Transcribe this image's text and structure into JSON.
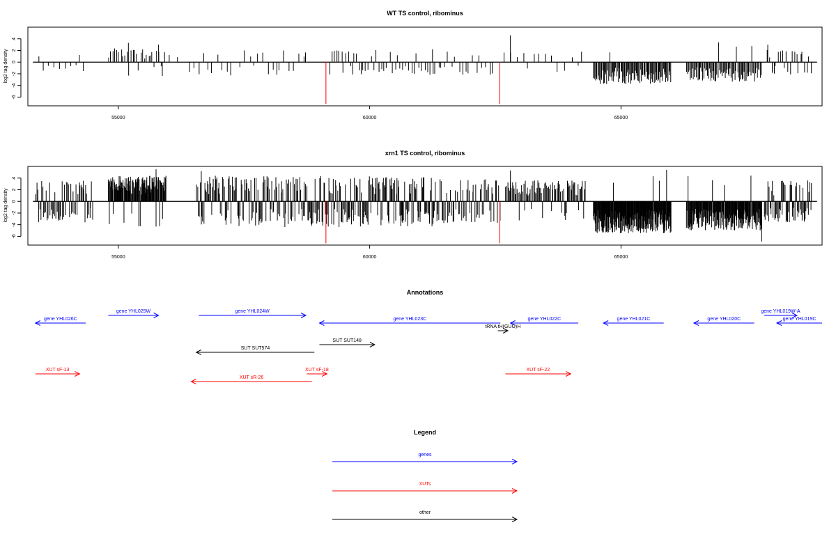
{
  "chart_data": [
    {
      "type": "bar",
      "title": "WT TS control, ribominus",
      "ylabel": "log2 tag density",
      "xlim": [
        53200,
        69000
      ],
      "ylim": [
        -7.5,
        6
      ],
      "xticks": [
        55000,
        60000,
        65000
      ],
      "xtick_labels": [
        "55000",
        "60000",
        "65000"
      ],
      "yticks": [
        -6,
        -4,
        -2,
        0,
        2,
        4
      ],
      "ytick_labels": [
        "-6",
        "-4",
        "-2",
        "0",
        "2",
        "4"
      ],
      "baseline": [
        53300,
        68900
      ],
      "highlights": [
        {
          "x": 59130,
          "value": -7.2,
          "color": "#ff0000"
        },
        {
          "x": 62590,
          "value": -7.2,
          "color": "#ff0000"
        }
      ],
      "profile": [
        {
          "start": 53400,
          "end": 54400,
          "n": 10,
          "amp": 1.6,
          "pos": 0.35,
          "seed": 11
        },
        {
          "start": 54800,
          "end": 55900,
          "n": 28,
          "amp": 2.4,
          "pos": 0.85,
          "seed": 12
        },
        {
          "start": 55900,
          "end": 56200,
          "n": 3,
          "amp": 2.0,
          "pos": 0.7,
          "seed": 13
        },
        {
          "start": 56400,
          "end": 57300,
          "n": 10,
          "amp": 2.6,
          "pos": 0.15,
          "seed": 14
        },
        {
          "start": 57400,
          "end": 58800,
          "n": 16,
          "amp": 2.2,
          "pos": 0.45,
          "seed": 15
        },
        {
          "start": 59200,
          "end": 59900,
          "n": 16,
          "amp": 2.4,
          "pos": 0.35,
          "seed": 16
        },
        {
          "start": 59900,
          "end": 61400,
          "n": 28,
          "amp": 2.2,
          "pos": 0.25,
          "seed": 17
        },
        {
          "start": 61400,
          "end": 62500,
          "n": 16,
          "amp": 2.2,
          "pos": 0.2,
          "seed": 18
        },
        {
          "start": 62650,
          "end": 64300,
          "n": 14,
          "amp": 1.8,
          "pos": 0.75,
          "seed": 19
        },
        {
          "start": 64450,
          "end": 66000,
          "n": 95,
          "amp": 3.8,
          "pos": 0.03,
          "seed": 20
        },
        {
          "start": 66300,
          "end": 67800,
          "n": 80,
          "amp": 3.4,
          "pos": 0.04,
          "seed": 21
        },
        {
          "start": 67900,
          "end": 68800,
          "n": 22,
          "amp": 2.2,
          "pos": 0.35,
          "seed": 22
        }
      ],
      "spikes": [
        {
          "x": 55200,
          "value": 3.3
        },
        {
          "x": 55800,
          "value": 3.0
        },
        {
          "x": 62800,
          "value": 4.6
        },
        {
          "x": 67920,
          "value": 3.0
        },
        {
          "x": 61250,
          "value": 2.2
        }
      ]
    },
    {
      "type": "bar",
      "title": "xrn1 TS control, ribominus",
      "ylabel": "log2 tag density",
      "xlim": [
        53200,
        69000
      ],
      "ylim": [
        -7.5,
        6
      ],
      "xticks": [
        55000,
        60000,
        65000
      ],
      "xtick_labels": [
        "55000",
        "60000",
        "65000"
      ],
      "yticks": [
        -6,
        -4,
        -2,
        0,
        2,
        4
      ],
      "ytick_labels": [
        "-6",
        "-4",
        "-2",
        "0",
        "2",
        "4"
      ],
      "baseline": [
        53300,
        68900
      ],
      "highlights": [
        {
          "x": 59130,
          "value": -7.2,
          "color": "#ff0000"
        },
        {
          "x": 62590,
          "value": -7.2,
          "color": "#ff0000"
        }
      ],
      "profile": [
        {
          "start": 53350,
          "end": 54500,
          "n": 60,
          "amp": 3.6,
          "pos": 0.35,
          "seed": 31
        },
        {
          "start": 54800,
          "end": 55950,
          "n": 120,
          "amp": 4.4,
          "pos": 0.92,
          "seed": 32
        },
        {
          "start": 56550,
          "end": 59200,
          "n": 150,
          "amp": 4.4,
          "pos": 0.5,
          "seed": 33
        },
        {
          "start": 59200,
          "end": 61300,
          "n": 130,
          "amp": 4.4,
          "pos": 0.5,
          "seed": 34
        },
        {
          "start": 61300,
          "end": 62600,
          "n": 60,
          "amp": 3.8,
          "pos": 0.5,
          "seed": 35
        },
        {
          "start": 62700,
          "end": 64300,
          "n": 85,
          "amp": 3.6,
          "pos": 0.85,
          "seed": 36
        },
        {
          "start": 64450,
          "end": 66000,
          "n": 200,
          "amp": 5.5,
          "pos": 0.02,
          "seed": 37
        },
        {
          "start": 66300,
          "end": 67800,
          "n": 160,
          "amp": 5.0,
          "pos": 0.04,
          "seed": 38
        },
        {
          "start": 67850,
          "end": 68800,
          "n": 60,
          "amp": 3.6,
          "pos": 0.3,
          "seed": 39
        }
      ],
      "spikes": [
        {
          "x": 55750,
          "value": 5.5
        },
        {
          "x": 62800,
          "value": 5.3
        },
        {
          "x": 67800,
          "value": -6.9
        },
        {
          "x": 56650,
          "value": 5.2
        }
      ]
    }
  ],
  "annotations": {
    "title": "Annotations",
    "features": [
      {
        "label": "gene YHL026C",
        "start": 53350,
        "end": 54350,
        "strand": "-",
        "row": 1,
        "color": "#0000ff"
      },
      {
        "label": "gene YHL025W",
        "start": 54800,
        "end": 55800,
        "strand": "+",
        "row": 0,
        "color": "#0000ff"
      },
      {
        "label": "gene YHL024W",
        "start": 56600,
        "end": 58730,
        "strand": "+",
        "row": 0,
        "color": "#0000ff"
      },
      {
        "label": "gene YHL023C",
        "start": 59000,
        "end": 62600,
        "strand": "-",
        "row": 1,
        "color": "#0000ff"
      },
      {
        "label": "gene YHL022C",
        "start": 62800,
        "end": 64150,
        "strand": "-",
        "row": 1,
        "color": "#0000ff"
      },
      {
        "label": "gene YHL021C",
        "start": 64650,
        "end": 65850,
        "strand": "-",
        "row": 1,
        "color": "#0000ff"
      },
      {
        "label": "gene YHL020C",
        "start": 66450,
        "end": 67650,
        "strand": "-",
        "row": 1,
        "color": "#0000ff"
      },
      {
        "label": "gene YHL019W-A",
        "start": 67850,
        "end": 68500,
        "strand": "+",
        "row": 0,
        "color": "#0000ff"
      },
      {
        "label": "gene YHL019C",
        "start": 68100,
        "end": 69000,
        "strand": "-",
        "row": 1,
        "color": "#0000ff"
      },
      {
        "label": "tRNA tH(GUG)H",
        "start": 62550,
        "end": 62750,
        "strand": "+",
        "row": 2,
        "color": "#000000"
      },
      {
        "label": "SUT SUT148",
        "start": 59000,
        "end": 60100,
        "strand": "+",
        "row": 3,
        "color": "#000000"
      },
      {
        "label": "SUT SUT574",
        "start": 56550,
        "end": 58900,
        "strand": "-",
        "row": 4,
        "color": "#000000"
      },
      {
        "label": "XUT sF-13",
        "start": 53350,
        "end": 54230,
        "strand": "+",
        "row": 5,
        "color": "#ff0000"
      },
      {
        "label": "XUT sF-18",
        "start": 58750,
        "end": 59150,
        "strand": "+",
        "row": 5,
        "color": "#ff0000"
      },
      {
        "label": "XUT sF-22",
        "start": 62700,
        "end": 64000,
        "strand": "+",
        "row": 5,
        "color": "#ff0000"
      },
      {
        "label": "XUT sR-26",
        "start": 56450,
        "end": 58850,
        "strand": "-",
        "row": 6,
        "color": "#ff0000"
      }
    ]
  },
  "legend": {
    "title": "Legend",
    "items": [
      {
        "label": "genes",
        "color": "#0000ff"
      },
      {
        "label": "XUTs",
        "color": "#ff0000"
      },
      {
        "label": "other",
        "color": "#000000"
      }
    ]
  }
}
